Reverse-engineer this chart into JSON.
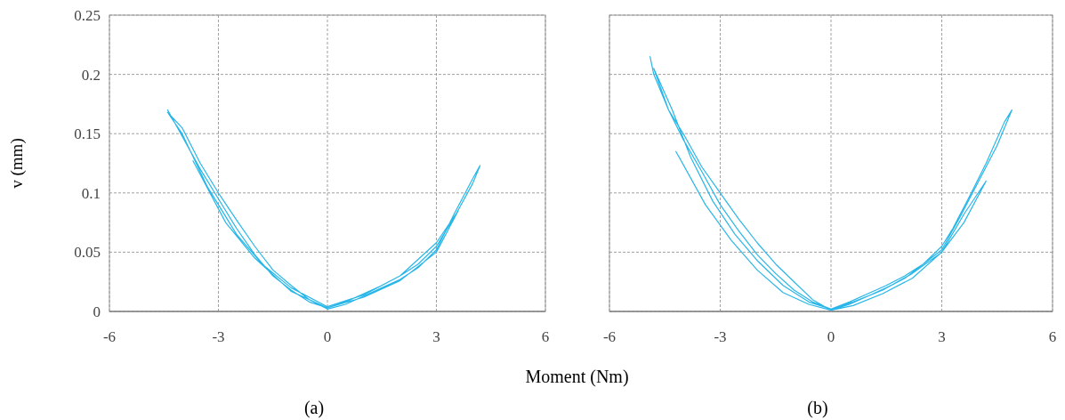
{
  "chart_data": [
    {
      "type": "line",
      "xlabel": "Moment (Nm)",
      "ylabel": "v (mm)",
      "annotations": [
        "(a)"
      ],
      "xlim": [
        -6,
        6
      ],
      "xticks": [
        -6,
        -3,
        0,
        3,
        6
      ],
      "ylim": [
        0,
        0.25
      ],
      "yticks": [
        0,
        0.05,
        0.1,
        0.15,
        0.2,
        0.25
      ],
      "grid": true,
      "marker": "none",
      "line_style": "solid",
      "series": [
        {
          "color": "#29b6e8",
          "x": [
            -4.4,
            -4.0,
            -3.5,
            -3.0,
            -2.5,
            -2.0,
            -1.5,
            -1.0,
            -0.5,
            0,
            0.5,
            1.0,
            1.5,
            2.0,
            2.5,
            3.0,
            3.5,
            4.0,
            4.2,
            4.0,
            3.5,
            3.0,
            2.5,
            2.0,
            1.5,
            1.0,
            0.5,
            0,
            -0.5,
            -1.0,
            -1.5,
            -2.0,
            -2.5,
            -3.0,
            -3.5,
            -4.0,
            -4.4,
            -4.0,
            -3.3,
            -2.5,
            -1.8,
            -1.0,
            0,
            1.0,
            2.0,
            3.0,
            3.6,
            3.0,
            2.0,
            1.0,
            0,
            -1.0,
            -2.0,
            -2.8,
            -3.7
          ],
          "values": [
            0.17,
            0.148,
            0.12,
            0.095,
            0.07,
            0.048,
            0.03,
            0.018,
            0.008,
            0.003,
            0.008,
            0.015,
            0.022,
            0.03,
            0.04,
            0.055,
            0.08,
            0.108,
            0.123,
            0.112,
            0.083,
            0.052,
            0.037,
            0.027,
            0.02,
            0.013,
            0.006,
            0.002,
            0.01,
            0.022,
            0.035,
            0.055,
            0.077,
            0.1,
            0.125,
            0.155,
            0.168,
            0.15,
            0.105,
            0.065,
            0.04,
            0.02,
            0.004,
            0.014,
            0.03,
            0.058,
            0.085,
            0.05,
            0.026,
            0.012,
            0.003,
            0.017,
            0.045,
            0.075,
            0.127
          ]
        }
      ]
    },
    {
      "type": "line",
      "annotations": [
        "(b)"
      ],
      "xlim": [
        -6,
        6
      ],
      "xticks": [
        -6,
        -3,
        0,
        3,
        6
      ],
      "ylim": [
        0,
        0.25
      ],
      "yticks": [
        0,
        0.05,
        0.1,
        0.15,
        0.2,
        0.25
      ],
      "tick_labels": "x",
      "grid": true,
      "marker": "none",
      "line_style": "solid",
      "series": [
        {
          "color": "#29b6e8",
          "x": [
            -4.9,
            -4.8,
            -4.4,
            -4.0,
            -3.5,
            -3.0,
            -2.5,
            -2.0,
            -1.5,
            -1.0,
            -0.5,
            0,
            0.5,
            1.0,
            1.5,
            2.0,
            2.5,
            3.0,
            3.5,
            4.0,
            4.5,
            4.9,
            4.7,
            4.2,
            3.8,
            3.3,
            3.0,
            2.5,
            2.0,
            1.5,
            1.0,
            0.5,
            0,
            -0.5,
            -1.0,
            -1.5,
            -2.0,
            -2.5,
            -3.0,
            -3.5,
            -4.0,
            -4.4,
            -4.8,
            -4.3,
            -3.8,
            -3.2,
            -2.6,
            -2.0,
            -1.3,
            -0.6,
            0,
            0.6,
            1.4,
            2.2,
            3.0,
            3.6,
            4.2,
            3.6,
            3.0,
            2.2,
            1.4,
            0.6,
            0,
            -0.6,
            -1.3,
            -2.0,
            -2.7,
            -3.4,
            -4.2
          ],
          "values": [
            0.215,
            0.2,
            0.17,
            0.145,
            0.118,
            0.09,
            0.068,
            0.048,
            0.032,
            0.018,
            0.008,
            0.002,
            0.008,
            0.015,
            0.022,
            0.03,
            0.04,
            0.052,
            0.08,
            0.11,
            0.14,
            0.17,
            0.16,
            0.125,
            0.1,
            0.07,
            0.055,
            0.04,
            0.028,
            0.02,
            0.013,
            0.006,
            0.001,
            0.01,
            0.025,
            0.04,
            0.058,
            0.078,
            0.1,
            0.122,
            0.15,
            0.17,
            0.205,
            0.17,
            0.13,
            0.093,
            0.065,
            0.043,
            0.022,
            0.008,
            0.002,
            0.008,
            0.018,
            0.032,
            0.05,
            0.075,
            0.11,
            0.082,
            0.05,
            0.028,
            0.015,
            0.005,
            0.001,
            0.006,
            0.016,
            0.035,
            0.06,
            0.09,
            0.135
          ]
        }
      ]
    }
  ]
}
